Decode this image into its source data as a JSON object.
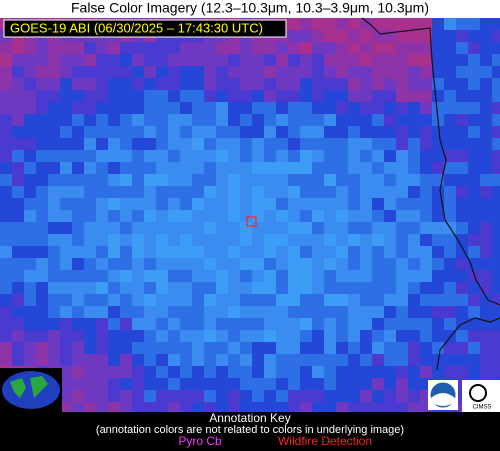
{
  "header": {
    "title": "False Color Imagery (12.3–10.3μm, 10.3–3.9μm, 10.3μm)"
  },
  "image": {
    "timestamp_label": "GOES-19 ABI (06/30/2025 – 17:43:30 UTC)"
  },
  "annotation_key": {
    "title": "Annotation Key",
    "note": "(annotation colors are not related to colors in underlying image)",
    "items": [
      "Pyro Cb",
      "Wildfire Detection"
    ]
  }
}
